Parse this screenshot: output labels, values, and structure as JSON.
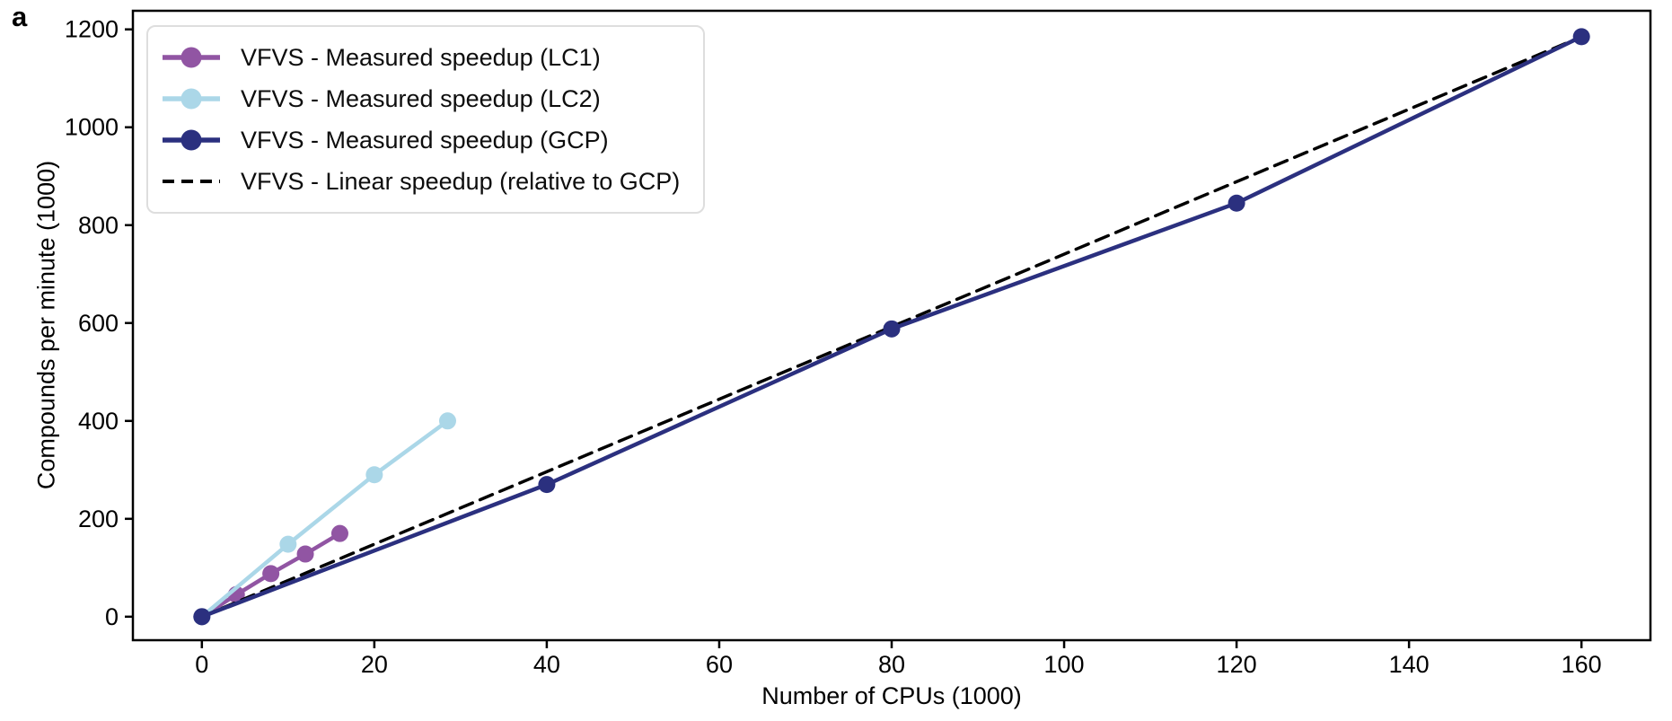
{
  "panel_label": "a",
  "chart_data": {
    "type": "line",
    "title": "",
    "xlabel": "Number of CPUs (1000)",
    "ylabel": "Compounds per minute (1000)",
    "xlim": [
      -8,
      168
    ],
    "ylim": [
      -48,
      1238
    ],
    "xticks": [
      0,
      20,
      40,
      60,
      80,
      100,
      120,
      140,
      160
    ],
    "yticks": [
      0,
      200,
      400,
      600,
      800,
      1000,
      1200
    ],
    "grid": false,
    "background": "#ffffff",
    "spine_color": "#000000",
    "legend_position": "upper-left",
    "series": [
      {
        "name": "VFVS - Measured speedup (LC1)",
        "color": "#9155A3",
        "style": "solid",
        "marker": true,
        "x": [
          0,
          4,
          8,
          12,
          16
        ],
        "y": [
          0,
          45,
          88,
          128,
          170
        ]
      },
      {
        "name": "VFVS - Measured speedup (LC2)",
        "color": "#ABD7E8",
        "style": "solid",
        "marker": true,
        "x": [
          0,
          10,
          20,
          28.5
        ],
        "y": [
          0,
          148,
          290,
          400
        ]
      },
      {
        "name": "VFVS - Measured speedup (GCP)",
        "color": "#2B307F",
        "style": "solid",
        "marker": true,
        "x": [
          0,
          40,
          80,
          120,
          160
        ],
        "y": [
          0,
          270,
          588,
          845,
          1185
        ]
      },
      {
        "name": "VFVS - Linear speedup (relative to GCP)",
        "color": "#000000",
        "style": "dashed",
        "marker": false,
        "x": [
          0,
          160
        ],
        "y": [
          0,
          1185
        ]
      }
    ]
  }
}
